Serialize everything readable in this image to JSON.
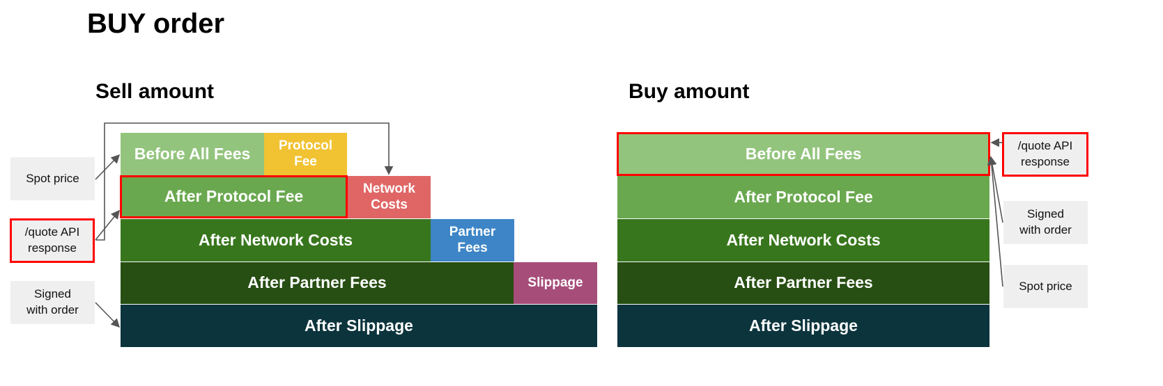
{
  "title": "BUY order",
  "sell": {
    "heading": "Sell amount",
    "blocks": {
      "before_all_fees": "Before All Fees",
      "protocol_fee": "Protocol Fee",
      "after_protocol_fee": "After Protocol Fee",
      "network_costs": "Network Costs",
      "after_network_costs": "After Network Costs",
      "partner_fees": "Partner Fees",
      "after_partner_fees": "After Partner Fees",
      "slippage": "Slippage",
      "after_slippage": "After Slippage"
    },
    "notes": {
      "spot_price": "Spot price",
      "quote_api": "/quote API response",
      "signed": "Signed with order"
    }
  },
  "buy": {
    "heading": "Buy amount",
    "blocks": {
      "before_all_fees": "Before All Fees",
      "after_protocol_fee": "After Protocol Fee",
      "after_network_costs": "After Network Costs",
      "after_partner_fees": "After Partner Fees",
      "after_slippage": "After Slippage"
    },
    "notes": {
      "quote_api": "/quote API response",
      "signed": "Signed with order",
      "spot_price": "Spot price"
    }
  },
  "colors": {
    "before_all_fees": "#93c47d",
    "protocol_fee": "#f1c232",
    "after_protocol_fee": "#6aa84f",
    "network_costs": "#e06666",
    "after_network_costs": "#38761d",
    "partner_fees": "#3d85c6",
    "after_partner_fees": "#274e13",
    "slippage": "#a64d79",
    "after_slippage": "#0c343d",
    "highlight": "#ff0000"
  }
}
